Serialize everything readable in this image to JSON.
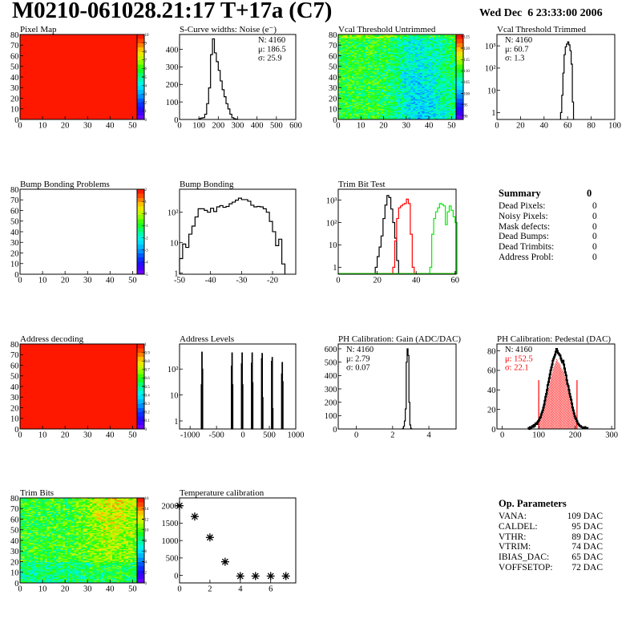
{
  "header": {
    "title": "M0210-061028.21:17 T+17a (C7)",
    "date": "Wed Dec  6 23:33:00 2006"
  },
  "summary": {
    "title": "Summary",
    "total": "0",
    "items": [
      {
        "label": "Dead Pixels:",
        "value": "0"
      },
      {
        "label": "Noisy Pixels:",
        "value": "0"
      },
      {
        "label": "Mask defects:",
        "value": "0"
      },
      {
        "label": "Dead Bumps:",
        "value": "0"
      },
      {
        "label": "Dead Trimbits:",
        "value": "0"
      },
      {
        "label": "Address Probl:",
        "value": "0"
      }
    ]
  },
  "op_parameters": {
    "title": "Op. Parameters",
    "items": [
      {
        "label": "VANA:",
        "value": "109 DAC"
      },
      {
        "label": "CALDEL:",
        "value": "95 DAC"
      },
      {
        "label": "VTHR:",
        "value": "89 DAC"
      },
      {
        "label": "VTRIM:",
        "value": "74 DAC"
      },
      {
        "label": "IBIAS_DAC:",
        "value": "65 DAC"
      },
      {
        "label": "VOFFSETOP:",
        "value": "72 DAC"
      }
    ]
  },
  "palette": [
    "#7f00ff",
    "#2a00ff",
    "#0040ff",
    "#00a8ff",
    "#00f0ff",
    "#00ff90",
    "#20ff00",
    "#b0ff00",
    "#ffe000",
    "#ff6000",
    "#ff0000",
    "#ff0000"
  ],
  "chart_data": [
    {
      "type": "heatmap",
      "title": "Pixel Map",
      "xlim": [
        0,
        52
      ],
      "ylim": [
        0,
        80
      ],
      "xticks": [
        0,
        10,
        20,
        30,
        40,
        50
      ],
      "yticks": [
        0,
        10,
        20,
        30,
        40,
        50,
        60,
        70,
        80
      ],
      "zlim": [
        0,
        10
      ],
      "zticks": [
        0,
        1,
        2,
        3,
        4,
        5,
        6,
        7,
        8,
        9,
        10
      ],
      "appearance": "uniform",
      "value": 10
    },
    {
      "type": "histogram",
      "title": "S-Curve widths: Noise (e⁻)",
      "xlim": [
        0,
        600
      ],
      "ylim": [
        0,
        485
      ],
      "log": false,
      "xticks": [
        0,
        100,
        200,
        300,
        400,
        500,
        600
      ],
      "yticks": [
        0,
        100,
        200,
        300,
        400
      ],
      "bin_start": 100,
      "bin_width": 10,
      "values": [
        5,
        8,
        10,
        30,
        90,
        180,
        370,
        460,
        380,
        330,
        280,
        220,
        170,
        130,
        90,
        60,
        30,
        10,
        4,
        2
      ],
      "stats_position": "top-right",
      "stats": [
        {
          "text": "N: 4160",
          "color": "#000000"
        },
        {
          "text": "μ: 186.5",
          "color": "#000000"
        },
        {
          "text": "σ: 25.9",
          "color": "#000000"
        }
      ]
    },
    {
      "type": "heatmap",
      "title": "Vcal Threshold Untrimmed",
      "xlim": [
        0,
        52
      ],
      "ylim": [
        0,
        80
      ],
      "xticks": [
        0,
        10,
        20,
        30,
        40,
        50
      ],
      "yticks": [
        0,
        10,
        20,
        30,
        40,
        50,
        60,
        70,
        80
      ],
      "zlim": [
        88.5,
        126
      ],
      "zticks": [
        90,
        95,
        100,
        105,
        110,
        115,
        120,
        125
      ],
      "appearance": "noisy"
    },
    {
      "type": "histogram",
      "title": "Vcal Threshold Trimmed",
      "xlim": [
        0,
        100
      ],
      "ylim": [
        0.49,
        3240
      ],
      "log": true,
      "xticks": [
        0,
        20,
        40,
        60,
        80,
        100
      ],
      "yticks": [
        1,
        10,
        100,
        1000
      ],
      "ytick_labels": [
        "1",
        "10",
        "10²",
        "10³"
      ],
      "bin_start": 54,
      "bin_width": 1,
      "values": [
        1,
        6,
        60,
        400,
        900,
        1200,
        1500,
        1100,
        600,
        150,
        3
      ],
      "stats_position": "top-left",
      "stats": [
        {
          "text": "N: 4160",
          "color": "#000000"
        },
        {
          "text": "μ: 60.7",
          "color": "#000000"
        },
        {
          "text": "σ:  1.3",
          "color": "#000000"
        }
      ]
    },
    {
      "type": "heatmap",
      "title": "Bump Bonding Problems",
      "xlim": [
        0,
        52
      ],
      "ylim": [
        0,
        80
      ],
      "xticks": [
        0,
        10,
        20,
        30,
        40,
        50
      ],
      "yticks": [
        0,
        10,
        20,
        30,
        40,
        50,
        60,
        70,
        80
      ],
      "zlim": [
        -5,
        2
      ],
      "zticks": [
        -5,
        -4,
        -3,
        -2,
        -1,
        0,
        1,
        2
      ],
      "appearance": "empty"
    },
    {
      "type": "histogram",
      "title": "Bump Bonding",
      "xlim": [
        -50,
        -12.5
      ],
      "ylim": [
        0.92,
        570
      ],
      "log": true,
      "xticks": [
        -50,
        -40,
        -30,
        -20
      ],
      "yticks": [
        1,
        10,
        100
      ],
      "ytick_labels": [
        "1",
        "10",
        "10²"
      ],
      "bin_start": -50,
      "bin_width": 1,
      "values": [
        3,
        9,
        7,
        19,
        35,
        70,
        130,
        130,
        115,
        100,
        135,
        105,
        150,
        165,
        145,
        155,
        190,
        215,
        250,
        290,
        260,
        260,
        230,
        170,
        150,
        155,
        150,
        130,
        100,
        50,
        23,
        8,
        13,
        2
      ]
    },
    {
      "type": "histogram",
      "title": "Trim Bit Test",
      "xlim": [
        0,
        60.5
      ],
      "ylim": [
        0.49,
        3060
      ],
      "log": true,
      "xticks": [
        0,
        20,
        40,
        60
      ],
      "yticks": [
        1,
        10,
        100,
        1000
      ],
      "ytick_labels": [
        "1",
        "10",
        "10²",
        "10³"
      ],
      "series": [
        {
          "color": "#000000",
          "bin_start": 19,
          "bin_width": 1,
          "values": [
            1,
            3,
            8,
            25,
            150,
            600,
            1600,
            1300,
            400,
            100,
            20,
            2
          ]
        },
        {
          "color": "#ff0000",
          "bin_start": 28,
          "bin_width": 1,
          "values": [
            1,
            15,
            150,
            450,
            550,
            650,
            700,
            1100,
            700,
            30,
            1
          ]
        },
        {
          "color": "#00ee00",
          "bin_start": 47,
          "bin_width": 1,
          "values": [
            1,
            30,
            150,
            300,
            450,
            700,
            650,
            550,
            80,
            300,
            550,
            350,
            180,
            100
          ]
        }
      ]
    },
    {
      "type": "heatmap",
      "title": "Address decoding",
      "xlim": [
        0,
        52
      ],
      "ylim": [
        0,
        80
      ],
      "xticks": [
        0,
        10,
        20,
        30,
        40,
        50
      ],
      "yticks": [
        0,
        10,
        20,
        30,
        40,
        50,
        60,
        70,
        80
      ],
      "zlim": [
        0,
        1
      ],
      "zticks": [
        0,
        0.1,
        0.2,
        0.3,
        0.4,
        0.5,
        0.6,
        0.7,
        0.8,
        0.9,
        1
      ],
      "appearance": "uniform",
      "value": 1
    },
    {
      "type": "histogram",
      "title": "Address Levels",
      "xlim": [
        -1200,
        1000
      ],
      "ylim": [
        0.49,
        925
      ],
      "log": true,
      "xticks": [
        -1000,
        -500,
        0,
        500,
        1000
      ],
      "yticks": [
        1,
        10,
        100
      ],
      "ytick_labels": [
        "1",
        "10",
        "10²"
      ],
      "bin_width": 10,
      "bins": [
        [
          -790,
          25
        ],
        [
          -780,
          450
        ],
        [
          -770,
          100
        ],
        [
          -220,
          130
        ],
        [
          -210,
          420
        ],
        [
          -200,
          25
        ],
        [
          -30,
          160
        ],
        [
          -20,
          420
        ],
        [
          -10,
          25
        ],
        [
          160,
          170
        ],
        [
          170,
          420
        ],
        [
          180,
          30
        ],
        [
          350,
          250
        ],
        [
          360,
          400
        ],
        [
          370,
          8
        ],
        [
          540,
          200
        ],
        [
          550,
          280
        ],
        [
          560,
          3
        ],
        [
          730,
          65
        ],
        [
          740,
          180
        ],
        [
          750,
          33
        ]
      ]
    },
    {
      "type": "histogram",
      "title": "PH Calibration: Gain (ADC/DAC)",
      "xlim": [
        -1,
        5.5
      ],
      "ylim": [
        0,
        636
      ],
      "log": false,
      "xticks": [
        0,
        2,
        4
      ],
      "yticks": [
        0,
        100,
        200,
        300,
        400,
        500,
        600
      ],
      "bin_start": 2.55,
      "bin_width": 0.05,
      "values": [
        5,
        20,
        60,
        150,
        500,
        600,
        550,
        200,
        30,
        5
      ],
      "stats_position": "top-left",
      "stats": [
        {
          "text": "N: 4160",
          "color": "#000000"
        },
        {
          "text": "μ: 2.79",
          "color": "#000000"
        },
        {
          "text": "σ: 0.07",
          "color": "#000000"
        }
      ]
    },
    {
      "type": "histogram",
      "title": "PH Calibration: Pedestal (DAC)",
      "xlim": [
        -14.6,
        308.5
      ],
      "ylim": [
        0,
        87
      ],
      "log": false,
      "xticks": [
        0,
        100,
        200,
        300
      ],
      "yticks": [
        0,
        20,
        40,
        60,
        80
      ],
      "bin_start": 72,
      "bin_width": 2,
      "values": [
        1,
        0,
        2,
        1,
        2,
        3,
        2,
        4,
        3,
        5,
        6,
        5,
        7,
        8,
        9,
        11,
        12,
        15,
        17,
        19,
        22,
        25,
        29,
        33,
        36,
        40,
        45,
        48,
        52,
        56,
        60,
        63,
        66,
        70,
        72,
        74,
        76,
        79,
        82,
        80,
        78,
        77,
        76,
        75,
        72,
        70,
        68,
        70,
        66,
        62,
        58,
        55,
        50,
        46,
        44,
        40,
        36,
        33,
        30,
        26,
        22,
        19,
        16,
        13,
        11,
        10,
        8,
        6,
        5,
        4,
        3,
        3,
        2,
        2,
        1,
        1,
        1,
        2,
        1,
        1,
        1
      ],
      "fit_range": [
        100,
        205
      ],
      "fit_color": "#ff0000",
      "stats_position": "top-left",
      "stats": [
        {
          "text": "N: 4160",
          "color": "#000000"
        },
        {
          "text": "μ: 152.5",
          "color": "#ff0000"
        },
        {
          "text": "σ: 22.1",
          "color": "#ff0000"
        }
      ]
    },
    {
      "type": "heatmap",
      "title": "Trim Bits",
      "xlim": [
        0,
        52
      ],
      "ylim": [
        0,
        80
      ],
      "xticks": [
        0,
        10,
        20,
        30,
        40,
        50
      ],
      "yticks": [
        0,
        10,
        20,
        30,
        40,
        50,
        60,
        70,
        80
      ],
      "zlim": [
        0,
        16
      ],
      "zticks": [
        0,
        2,
        4,
        6,
        8,
        10,
        12,
        14,
        16
      ],
      "appearance": "noisy"
    },
    {
      "type": "scatter",
      "title": "Temperature calibration",
      "xlim": [
        0,
        7.65
      ],
      "ylim": [
        -217,
        2224
      ],
      "log": false,
      "xticks": [
        0,
        2,
        4,
        6
      ],
      "yticks": [
        0,
        500,
        1000,
        1500,
        2000
      ],
      "marker": "star",
      "x": [
        0,
        1,
        2,
        3,
        4,
        5,
        6,
        7
      ],
      "y": [
        2000,
        1690,
        1090,
        390,
        -20,
        -20,
        -20,
        -20
      ]
    }
  ]
}
